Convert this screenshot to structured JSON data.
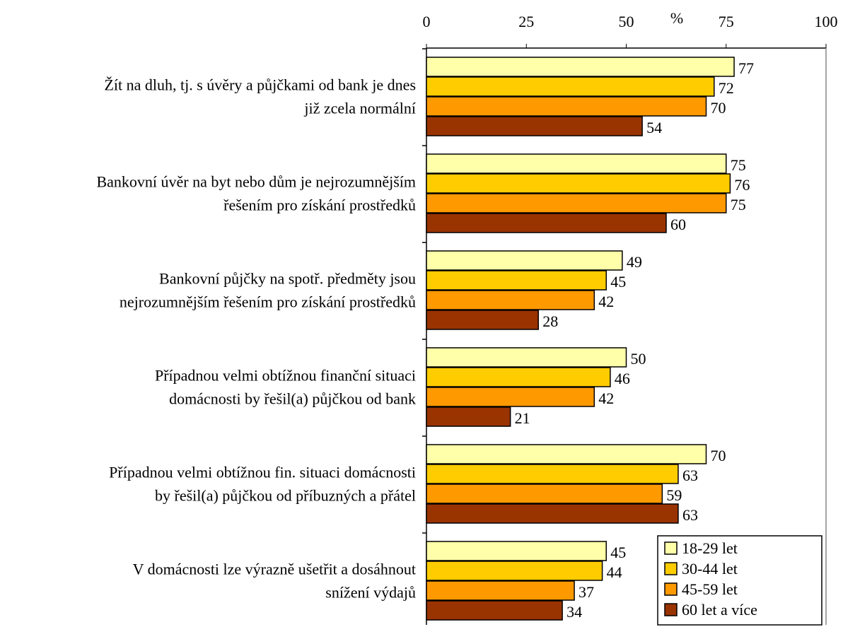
{
  "chart_data": {
    "type": "bar",
    "orientation": "horizontal",
    "unit_label": "%",
    "xlim": [
      0,
      100
    ],
    "ticks": [
      0,
      25,
      50,
      75,
      100
    ],
    "categories": [
      [
        "Žít na dluh, tj. s úvěry a půjčkami od bank je dnes",
        "již zcela normální"
      ],
      [
        "Bankovní úvěr na byt nebo dům je nejrozumnějším",
        "řešením pro získání prostředků"
      ],
      [
        "Bankovní půjčky na spotř. předměty jsou",
        "nejrozumnějším řešením pro získání prostředků"
      ],
      [
        "Případnou velmi obtížnou finanční situaci",
        "domácnosti by řešil(a) půjčkou od bank"
      ],
      [
        "Případnou velmi obtížnou fin. situaci domácnosti",
        "by řešil(a) půjčkou od příbuzných a přátel"
      ],
      [
        "V domácnosti lze výrazně ušetřit a dosáhnout",
        "snížení výdajů"
      ]
    ],
    "series": [
      {
        "name": "18-29 let",
        "color": "#FFFFAA",
        "values": [
          77,
          75,
          49,
          50,
          70,
          45
        ]
      },
      {
        "name": "30-44 let",
        "color": "#FFCC00",
        "values": [
          72,
          76,
          45,
          46,
          63,
          44
        ]
      },
      {
        "name": "45-59 let",
        "color": "#FF9900",
        "values": [
          70,
          75,
          42,
          42,
          59,
          37
        ]
      },
      {
        "name": "60 let a více",
        "color": "#993300",
        "values": [
          54,
          60,
          28,
          21,
          63,
          34
        ]
      }
    ],
    "grid": false,
    "legend_position": "bottom-right"
  }
}
